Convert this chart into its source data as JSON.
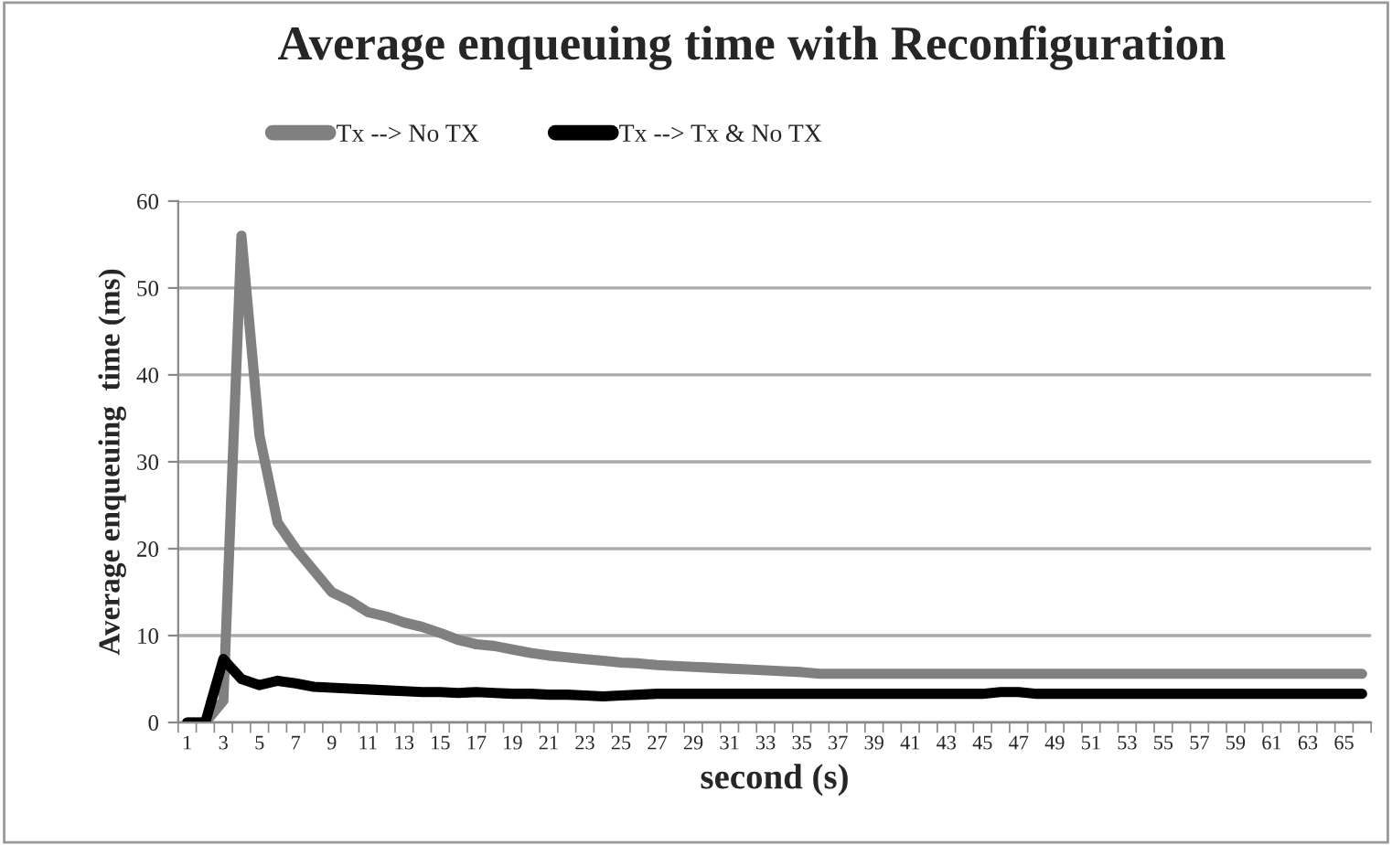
{
  "chart_data": {
    "type": "line",
    "title": "Average enqueuing time with Reconfiguration",
    "xlabel": "second (s)",
    "ylabel": "Average enqueuing  time (ms)",
    "categories": [
      "1",
      null,
      "3",
      null,
      "5",
      null,
      "7",
      null,
      "9",
      null,
      "11",
      null,
      "13",
      null,
      "15",
      null,
      "17",
      null,
      "19",
      null,
      "21",
      null,
      "23",
      null,
      "25",
      null,
      "27",
      null,
      "29",
      null,
      "31",
      null,
      "33",
      null,
      "35",
      null,
      "37",
      null,
      "39",
      null,
      "41",
      null,
      "43",
      null,
      "45",
      null,
      "47",
      null,
      "49",
      null,
      "51",
      null,
      "53",
      null,
      "55",
      null,
      "57",
      null,
      "59",
      null,
      "61",
      null,
      "63",
      null,
      "65",
      null
    ],
    "series": [
      {
        "name": "Tx --> No TX",
        "color": "#808080",
        "values": [
          0,
          0,
          2.5,
          56,
          33,
          23,
          20,
          17.5,
          15,
          14,
          12.7,
          12.2,
          11.5,
          11,
          10.3,
          9.5,
          9,
          8.8,
          8.4,
          8,
          7.7,
          7.5,
          7.3,
          7.1,
          6.9,
          6.8,
          6.6,
          6.5,
          6.4,
          6.3,
          6.2,
          6.1,
          6,
          5.9,
          5.8,
          5.6,
          5.6,
          5.6,
          5.6,
          5.6,
          5.6,
          5.6,
          5.6,
          5.6,
          5.6,
          5.6,
          5.6,
          5.6,
          5.6,
          5.6,
          5.6,
          5.6,
          5.6,
          5.6,
          5.6,
          5.6,
          5.6,
          5.6,
          5.6,
          5.6,
          5.6,
          5.6,
          5.6,
          5.6,
          5.6,
          5.6
        ]
      },
      {
        "name": "Tx --> Tx & No TX",
        "color": "#000000",
        "values": [
          0,
          0,
          7.3,
          5,
          4.3,
          4.8,
          4.5,
          4.1,
          4,
          3.9,
          3.8,
          3.7,
          3.6,
          3.5,
          3.5,
          3.4,
          3.5,
          3.4,
          3.3,
          3.3,
          3.2,
          3.2,
          3.1,
          3,
          3.1,
          3.2,
          3.3,
          3.3,
          3.3,
          3.3,
          3.3,
          3.3,
          3.3,
          3.3,
          3.3,
          3.3,
          3.3,
          3.3,
          3.3,
          3.3,
          3.3,
          3.3,
          3.3,
          3.3,
          3.3,
          3.5,
          3.5,
          3.3,
          3.3,
          3.3,
          3.3,
          3.3,
          3.3,
          3.3,
          3.3,
          3.3,
          3.3,
          3.3,
          3.3,
          3.3,
          3.3,
          3.3,
          3.3,
          3.3,
          3.3,
          3.3
        ]
      }
    ],
    "ylim": [
      0,
      60
    ],
    "yticks": [
      0,
      10,
      20,
      30,
      40,
      50,
      60
    ],
    "grid": "y",
    "legend": "top",
    "marker": "none",
    "line_style": "solid"
  }
}
